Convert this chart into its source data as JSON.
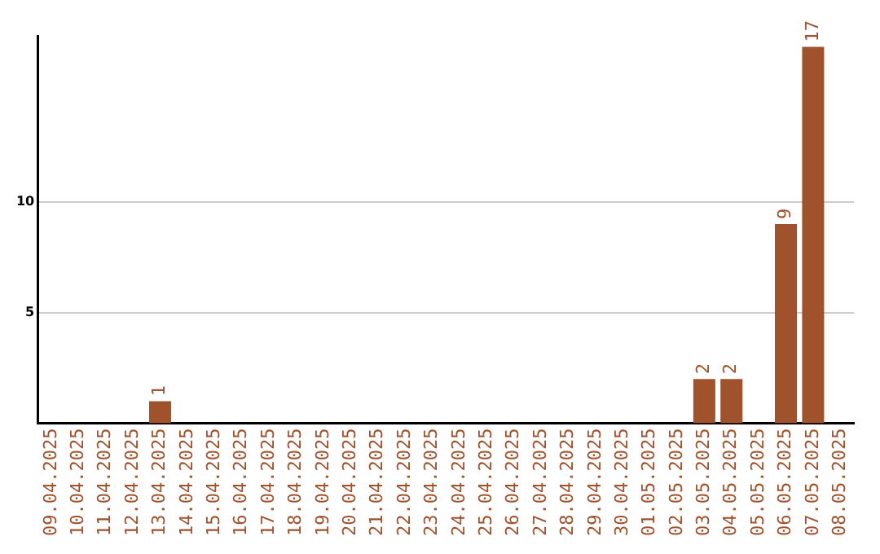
{
  "chart_data": {
    "type": "bar",
    "categories": [
      "09.04.2025",
      "10.04.2025",
      "11.04.2025",
      "12.04.2025",
      "13.04.2025",
      "14.04.2025",
      "15.04.2025",
      "16.04.2025",
      "17.04.2025",
      "18.04.2025",
      "19.04.2025",
      "20.04.2025",
      "21.04.2025",
      "22.04.2025",
      "23.04.2025",
      "24.04.2025",
      "25.04.2025",
      "26.04.2025",
      "27.04.2025",
      "28.04.2025",
      "29.04.2025",
      "30.04.2025",
      "01.05.2025",
      "02.05.2025",
      "03.05.2025",
      "04.05.2025",
      "05.05.2025",
      "06.05.2025",
      "07.05.2025",
      "08.05.2025"
    ],
    "values": [
      0,
      0,
      0,
      0,
      1,
      0,
      0,
      0,
      0,
      0,
      0,
      0,
      0,
      0,
      0,
      0,
      0,
      0,
      0,
      0,
      0,
      0,
      0,
      0,
      2,
      2,
      0,
      9,
      17,
      0
    ],
    "value_labels": [
      null,
      null,
      null,
      null,
      "1",
      null,
      null,
      null,
      null,
      null,
      null,
      null,
      null,
      null,
      null,
      null,
      null,
      null,
      null,
      null,
      null,
      null,
      null,
      null,
      "2",
      "2",
      null,
      "9",
      "17",
      null
    ],
    "color": "#a0522d",
    "ylim": [
      0,
      17.5
    ],
    "yticks": [
      5,
      10
    ],
    "grid": "y",
    "legend": false
  }
}
